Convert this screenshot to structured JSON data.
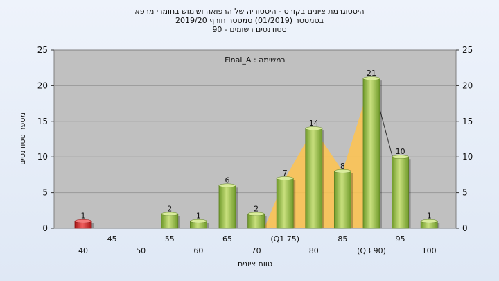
{
  "chart_data": {
    "type": "bar",
    "title_lines": [
      "היסטוגרמת ציונים בקורס - היסטוריה של הרפואה ושימוש בחומרי מרפא",
      "בסמסטר  (01/2019)  סמסטר חורף 2019/20",
      "סטודנטים רשומים - 90"
    ],
    "annotation": "במשימה : Final_A",
    "xlabel": "טווח ציונים",
    "ylabel": "מספר סטודנטים",
    "ylim": [
      0,
      25
    ],
    "yticks": [
      0,
      5,
      10,
      15,
      20,
      25
    ],
    "categories": [
      "40",
      "45",
      "50",
      "55",
      "60",
      "65",
      "70",
      "(Q1 75)",
      "80",
      "85",
      "(Q3 90)",
      "95",
      "100"
    ],
    "values": [
      1,
      0,
      0,
      2,
      1,
      6,
      2,
      7,
      14,
      8,
      21,
      10,
      1
    ],
    "highlight_index": 0,
    "iqr_area": {
      "from_index": 7,
      "to_index": 10
    },
    "colors": {
      "bar": "#9cc34a",
      "bar_highlight": "#d42828",
      "plot_bg": "#c0c0c0",
      "iqr_area": "#ffc34d"
    },
    "grid": true,
    "legend": "none"
  }
}
